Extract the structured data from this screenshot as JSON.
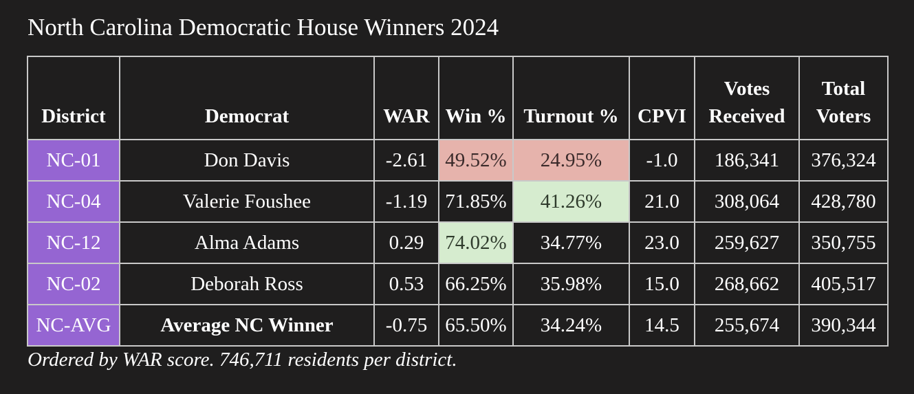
{
  "title": "North Carolina Democratic House Winners 2024",
  "caption": "Ordered by WAR score. 746,711 residents per district.",
  "colors": {
    "background": "#1f1e1e",
    "district_cell": "#9565d2",
    "low_highlight": "#e6b3ac",
    "high_highlight": "#d6eccf",
    "border": "#c9c9c9"
  },
  "chart_data": {
    "type": "table",
    "title": "North Carolina Democratic House Winners 2024",
    "columns": [
      "District",
      "Democrat",
      "WAR",
      "Win %",
      "Turnout %",
      "CPVI",
      "Votes\nReceived",
      "Total\nVoters"
    ],
    "rows": [
      {
        "district": "NC-01",
        "democrat": "Don Davis",
        "war": "-2.61",
        "win_pct": "49.52%",
        "turnout_pct": "24.95%",
        "cpvi": "-1.0",
        "votes_received": "186,341",
        "total_voters": "376,324",
        "win_hl": "low",
        "turnout_hl": "low",
        "bold": false
      },
      {
        "district": "NC-04",
        "democrat": "Valerie Foushee",
        "war": "-1.19",
        "win_pct": "71.85%",
        "turnout_pct": "41.26%",
        "cpvi": "21.0",
        "votes_received": "308,064",
        "total_voters": "428,780",
        "win_hl": "",
        "turnout_hl": "high",
        "bold": false
      },
      {
        "district": "NC-12",
        "democrat": "Alma Adams",
        "war": "0.29",
        "win_pct": "74.02%",
        "turnout_pct": "34.77%",
        "cpvi": "23.0",
        "votes_received": "259,627",
        "total_voters": "350,755",
        "win_hl": "high",
        "turnout_hl": "",
        "bold": false
      },
      {
        "district": "NC-02",
        "democrat": "Deborah Ross",
        "war": "0.53",
        "win_pct": "66.25%",
        "turnout_pct": "35.98%",
        "cpvi": "15.0",
        "votes_received": "268,662",
        "total_voters": "405,517",
        "win_hl": "",
        "turnout_hl": "",
        "bold": false
      },
      {
        "district": "NC-AVG",
        "democrat": "Average NC Winner",
        "war": "-0.75",
        "win_pct": "65.50%",
        "turnout_pct": "34.24%",
        "cpvi": "14.5",
        "votes_received": "255,674",
        "total_voters": "390,344",
        "win_hl": "",
        "turnout_hl": "",
        "bold": true
      }
    ]
  }
}
